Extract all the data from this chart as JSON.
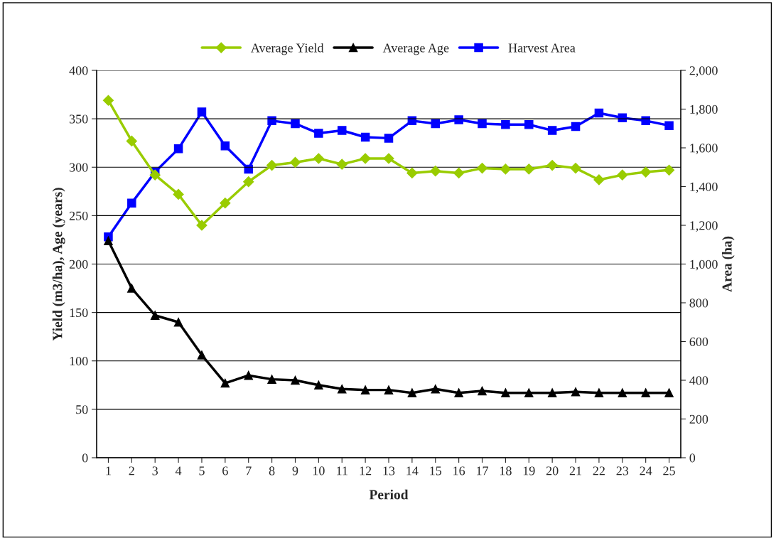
{
  "chart_data": {
    "type": "line",
    "xlabel": "Period",
    "ylabel": "Yield (m3/ha), Age (years)",
    "y2label": "Area (ha)",
    "categories": [
      "1",
      "2",
      "3",
      "4",
      "5",
      "6",
      "7",
      "8",
      "9",
      "10",
      "11",
      "12",
      "13",
      "14",
      "15",
      "16",
      "17",
      "18",
      "19",
      "20",
      "21",
      "22",
      "23",
      "24",
      "25"
    ],
    "series": [
      {
        "name": "Average Yield",
        "color": "#99cc00",
        "marker": "diamond",
        "values": [
          369,
          327,
          292,
          272,
          240,
          263,
          285,
          302,
          305,
          309,
          303,
          309,
          309,
          294,
          296,
          294,
          299,
          298,
          298,
          302,
          299,
          287,
          292,
          295,
          297
        ]
      },
      {
        "name": "Average Age",
        "color": "#000000",
        "marker": "triangle",
        "values": [
          224,
          175,
          147,
          140,
          106,
          77,
          85,
          81,
          80,
          75,
          71,
          70,
          70,
          67,
          71,
          67,
          69,
          67,
          67,
          67,
          68,
          67,
          67,
          67,
          67
        ]
      },
      {
        "name": "Harvest Area",
        "color": "#0000ff",
        "marker": "square",
        "axis": "y2",
        "values": [
          1140,
          1315,
          1475,
          1595,
          1785,
          1610,
          1490,
          1740,
          1725,
          1675,
          1690,
          1655,
          1650,
          1740,
          1725,
          1745,
          1725,
          1720,
          1720,
          1690,
          1710,
          1780,
          1755,
          1740,
          1715
        ]
      }
    ],
    "ylim": [
      0,
      400
    ],
    "yticks": [
      0,
      50,
      100,
      150,
      200,
      250,
      300,
      350,
      400
    ],
    "y2lim": [
      0,
      2000
    ],
    "y2ticks": [
      {
        "value": 0,
        "label": "0"
      },
      {
        "value": 200,
        "label": "200"
      },
      {
        "value": 400,
        "label": "400"
      },
      {
        "value": 600,
        "label": "600"
      },
      {
        "value": 800,
        "label": "800"
      },
      {
        "value": 1000,
        "label": "1,000"
      },
      {
        "value": 1200,
        "label": "1,200"
      },
      {
        "value": 1400,
        "label": "1,400"
      },
      {
        "value": 1600,
        "label": "1,600"
      },
      {
        "value": 1800,
        "label": "1,800"
      },
      {
        "value": 2000,
        "label": "2,000"
      }
    ],
    "grid": "y",
    "legend": "top",
    "line_style": "solid"
  }
}
